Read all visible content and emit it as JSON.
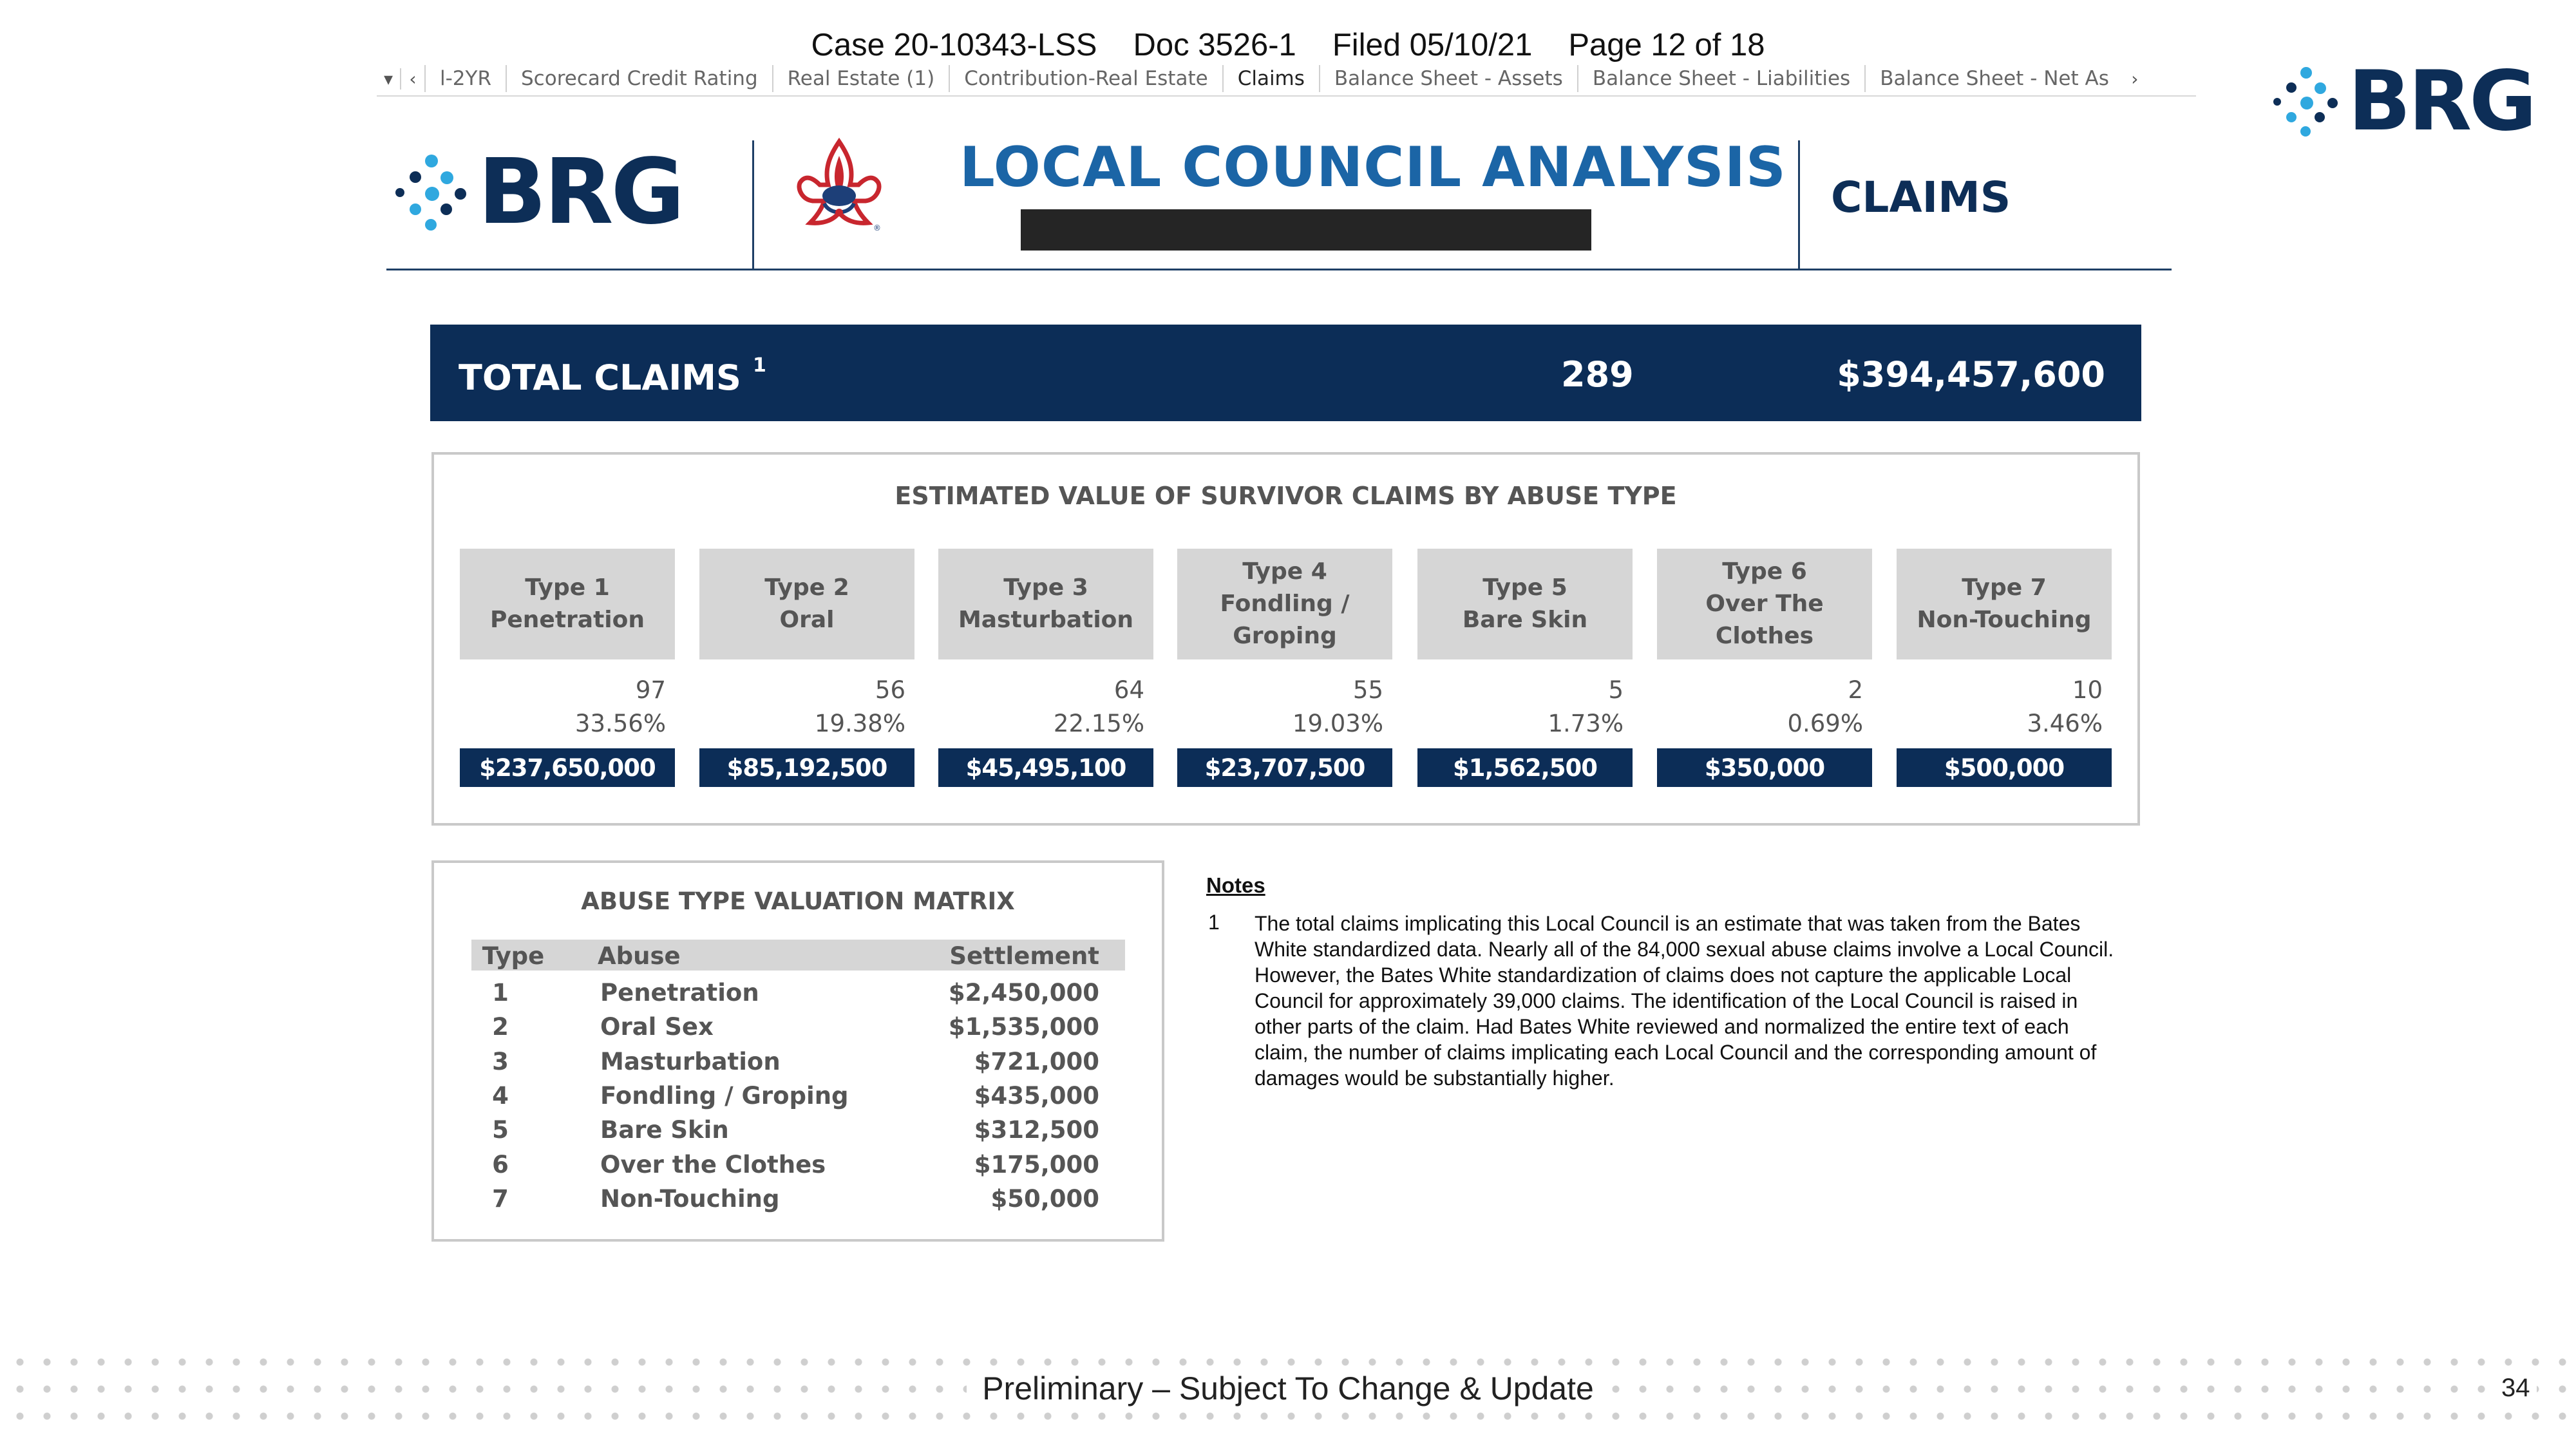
{
  "doc_header": {
    "case": "Case 20-10343-LSS",
    "doc": "Doc 3526-1",
    "filed": "Filed 05/10/21",
    "page": "Page 12 of 18"
  },
  "tabs": [
    {
      "label": "l-2YR"
    },
    {
      "label": "Scorecard Credit Rating"
    },
    {
      "label": "Real Estate (1)"
    },
    {
      "label": "Contribution-Real Estate"
    },
    {
      "label": "Claims"
    },
    {
      "label": "Balance Sheet - Assets"
    },
    {
      "label": "Balance Sheet - Liabilities"
    },
    {
      "label": "Balance Sheet - Net As"
    }
  ],
  "logo_text": "BRG",
  "header": {
    "title": "LOCAL COUNCIL ANALYSIS",
    "section": "CLAIMS"
  },
  "total": {
    "label": "TOTAL CLAIMS",
    "footnote": "1",
    "count": "289",
    "amount": "$394,457,600"
  },
  "estimated": {
    "title": "ESTIMATED VALUE OF SURVIVOR CLAIMS BY ABUSE TYPE",
    "columns": [
      {
        "lines": [
          "Type 1",
          "Penetration"
        ],
        "count": "97",
        "pct": "33.56%",
        "value": "$237,650,000"
      },
      {
        "lines": [
          "Type 2",
          "Oral"
        ],
        "count": "56",
        "pct": "19.38%",
        "value": "$85,192,500"
      },
      {
        "lines": [
          "Type 3",
          "Masturbation"
        ],
        "count": "64",
        "pct": "22.15%",
        "value": "$45,495,100"
      },
      {
        "lines": [
          "Type 4",
          "Fondling /",
          "Groping"
        ],
        "count": "55",
        "pct": "19.03%",
        "value": "$23,707,500"
      },
      {
        "lines": [
          "Type 5",
          "Bare Skin"
        ],
        "count": "5",
        "pct": "1.73%",
        "value": "$1,562,500"
      },
      {
        "lines": [
          "Type 6",
          "Over The",
          "Clothes"
        ],
        "count": "2",
        "pct": "0.69%",
        "value": "$350,000"
      },
      {
        "lines": [
          "Type 7",
          "Non-Touching"
        ],
        "count": "10",
        "pct": "3.46%",
        "value": "$500,000"
      }
    ]
  },
  "matrix": {
    "title": "ABUSE TYPE VALUATION MATRIX",
    "headers": {
      "type": "Type",
      "abuse": "Abuse",
      "settlement": "Settlement"
    },
    "rows": [
      {
        "type": "1",
        "abuse": "Penetration",
        "settlement": "$2,450,000"
      },
      {
        "type": "2",
        "abuse": "Oral Sex",
        "settlement": "$1,535,000"
      },
      {
        "type": "3",
        "abuse": "Masturbation",
        "settlement": "$721,000"
      },
      {
        "type": "4",
        "abuse": "Fondling / Groping",
        "settlement": "$435,000"
      },
      {
        "type": "5",
        "abuse": "Bare Skin",
        "settlement": "$312,500"
      },
      {
        "type": "6",
        "abuse": "Over the Clothes",
        "settlement": "$175,000"
      },
      {
        "type": "7",
        "abuse": "Non-Touching",
        "settlement": "$50,000"
      }
    ]
  },
  "notes": {
    "heading": "Notes",
    "items": [
      {
        "num": "1",
        "text": "The total claims implicating this Local Council is an estimate that was taken from the Bates White standardized data. Nearly all of the 84,000 sexual abuse claims involve a Local Council. However, the Bates White standardization of claims does not capture the applicable Local Council for approximately 39,000 claims. The identification of the Local Council is raised in other parts of the claim.  Had Bates White reviewed and normalized the entire text of each claim, the number of claims implicating each Local Council and the corresponding amount of damages would be substantially higher."
      }
    ]
  },
  "footer": {
    "text": "Preliminary – Subject To Change & Update",
    "page_number": "34"
  },
  "colors": {
    "navy": "#0c2d57",
    "title_blue": "#1b65a6",
    "brg_cyan": "#2fa8df",
    "gray_header": "#d6d6d6",
    "scout_red": "#c8262e"
  }
}
